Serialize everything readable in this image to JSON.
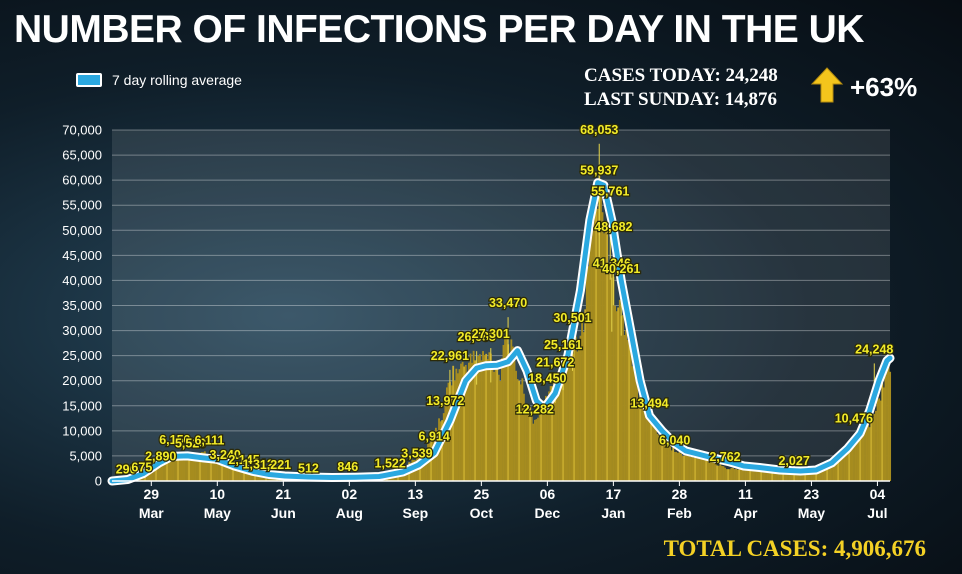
{
  "chart_data": {
    "type": "bar",
    "title": "NUMBER OF INFECTIONS PER DAY IN THE UK",
    "legend": {
      "label": "7 day rolling average",
      "placement": "top-left"
    },
    "ylim": [
      0,
      70000
    ],
    "yticks": [
      0,
      5000,
      10000,
      15000,
      20000,
      25000,
      30000,
      35000,
      40000,
      45000,
      50000,
      55000,
      60000,
      65000,
      70000
    ],
    "ytick_labels": [
      "0",
      "5,000",
      "10,000",
      "15,000",
      "20,000",
      "25,000",
      "30,000",
      "35,000",
      "40,000",
      "45,000",
      "50,000",
      "55,000",
      "60,000",
      "65,000",
      "70,000"
    ],
    "x_range_days": [
      0,
      495
    ],
    "xticks": [
      {
        "day": 25,
        "label": "29",
        "month": "Mar"
      },
      {
        "day": 67,
        "label": "10",
        "month": "May"
      },
      {
        "day": 109,
        "label": "21",
        "month": "Jun"
      },
      {
        "day": 151,
        "label": "02",
        "month": "Aug"
      },
      {
        "day": 193,
        "label": "13",
        "month": "Sep"
      },
      {
        "day": 235,
        "label": "25",
        "month": "Oct"
      },
      {
        "day": 277,
        "label": "06",
        "month": "Dec"
      },
      {
        "day": 319,
        "label": "17",
        "month": "Jan"
      },
      {
        "day": 361,
        "label": "28",
        "month": "Feb"
      },
      {
        "day": 403,
        "label": "11",
        "month": "Apr"
      },
      {
        "day": 445,
        "label": "23",
        "month": "May"
      },
      {
        "day": 487,
        "label": "04",
        "month": "Jul"
      }
    ],
    "series": [
      {
        "name": "7 day rolling average",
        "color": "#2aa8e0",
        "points": [
          [
            0,
            0
          ],
          [
            10,
            300
          ],
          [
            20,
            1500
          ],
          [
            30,
            3600
          ],
          [
            38,
            4900
          ],
          [
            48,
            5000
          ],
          [
            58,
            4600
          ],
          [
            67,
            4300
          ],
          [
            78,
            3000
          ],
          [
            90,
            1900
          ],
          [
            100,
            1300
          ],
          [
            110,
            1000
          ],
          [
            125,
            800
          ],
          [
            140,
            700
          ],
          [
            155,
            750
          ],
          [
            170,
            900
          ],
          [
            185,
            1800
          ],
          [
            195,
            3200
          ],
          [
            205,
            5600
          ],
          [
            215,
            12000
          ],
          [
            225,
            20000
          ],
          [
            232,
            22500
          ],
          [
            238,
            23000
          ],
          [
            245,
            23100
          ],
          [
            252,
            23800
          ],
          [
            258,
            26000
          ],
          [
            264,
            22000
          ],
          [
            270,
            16000
          ],
          [
            275,
            14500
          ],
          [
            282,
            17500
          ],
          [
            290,
            25000
          ],
          [
            298,
            38000
          ],
          [
            304,
            52000
          ],
          [
            309,
            59500
          ],
          [
            313,
            59000
          ],
          [
            318,
            52000
          ],
          [
            324,
            40000
          ],
          [
            330,
            30000
          ],
          [
            336,
            20000
          ],
          [
            342,
            13000
          ],
          [
            350,
            10000
          ],
          [
            358,
            7500
          ],
          [
            365,
            6000
          ],
          [
            375,
            5200
          ],
          [
            385,
            4400
          ],
          [
            393,
            3800
          ],
          [
            402,
            3000
          ],
          [
            412,
            2700
          ],
          [
            425,
            2200
          ],
          [
            438,
            2000
          ],
          [
            448,
            2200
          ],
          [
            458,
            3600
          ],
          [
            468,
            6500
          ],
          [
            476,
            9500
          ],
          [
            482,
            14000
          ],
          [
            488,
            20000
          ],
          [
            493,
            24000
          ],
          [
            495,
            24500
          ]
        ]
      }
    ],
    "bars_peaks": [
      [
        0,
        290
      ],
      [
        15,
        675
      ],
      [
        28,
        2890
      ],
      [
        40,
        6150
      ],
      [
        49,
        5520
      ],
      [
        59,
        6111
      ],
      [
        72,
        3240
      ],
      [
        82,
        2145
      ],
      [
        92,
        1312
      ],
      [
        102,
        1221
      ],
      [
        118,
        512
      ],
      [
        148,
        846
      ],
      [
        170,
        1522
      ],
      [
        188,
        3539
      ],
      [
        200,
        6914
      ],
      [
        210,
        13972
      ],
      [
        215,
        22961
      ],
      [
        230,
        26688
      ],
      [
        240,
        27301
      ],
      [
        247,
        24000
      ],
      [
        250,
        33470
      ],
      [
        255,
        27000
      ],
      [
        263,
        18450
      ],
      [
        268,
        12282
      ],
      [
        276,
        18450
      ],
      [
        283,
        21672
      ],
      [
        287,
        25161
      ],
      [
        295,
        30501
      ],
      [
        300,
        35000
      ],
      [
        305,
        55761
      ],
      [
        307,
        59937
      ],
      [
        310,
        68053
      ],
      [
        313,
        55761
      ],
      [
        317,
        48682
      ],
      [
        319,
        41346
      ],
      [
        322,
        40261
      ],
      [
        328,
        30000
      ],
      [
        335,
        20000
      ],
      [
        342,
        13494
      ],
      [
        353,
        8000
      ],
      [
        361,
        6040
      ],
      [
        372,
        5500
      ],
      [
        391,
        2762
      ],
      [
        410,
        2500
      ],
      [
        433,
        2027
      ],
      [
        460,
        4000
      ],
      [
        474,
        10476
      ],
      [
        482,
        13000
      ],
      [
        488,
        18000
      ],
      [
        493,
        24248
      ]
    ],
    "data_labels": [
      {
        "day": 9,
        "value": 290,
        "text": "290"
      },
      {
        "day": 19,
        "value": 675,
        "text": "675"
      },
      {
        "day": 31,
        "value": 2890,
        "text": "2,890"
      },
      {
        "day": 40,
        "value": 6150,
        "text": "6,150"
      },
      {
        "day": 50,
        "value": 5520,
        "text": "5,520"
      },
      {
        "day": 62,
        "value": 6111,
        "text": "6,111"
      },
      {
        "day": 72,
        "value": 3240,
        "text": "3,240"
      },
      {
        "day": 84,
        "value": 2145,
        "text": "2,145"
      },
      {
        "day": 93,
        "value": 1312,
        "text": "1,312"
      },
      {
        "day": 104,
        "value": 1221,
        "text": "1,221"
      },
      {
        "day": 125,
        "value": 512,
        "text": "512"
      },
      {
        "day": 150,
        "value": 846,
        "text": "846"
      },
      {
        "day": 177,
        "value": 1522,
        "text": "1,522"
      },
      {
        "day": 194,
        "value": 3539,
        "text": "3,539"
      },
      {
        "day": 205,
        "value": 6914,
        "text": "6,914"
      },
      {
        "day": 212,
        "value": 13972,
        "text": "13,972"
      },
      {
        "day": 215,
        "value": 22961,
        "text": "22,961"
      },
      {
        "day": 232,
        "value": 26688,
        "text": "26,688"
      },
      {
        "day": 241,
        "value": 27301,
        "text": "27,301"
      },
      {
        "day": 252,
        "value": 33470,
        "text": "33,470"
      },
      {
        "day": 269,
        "value": 12282,
        "text": "12,282"
      },
      {
        "day": 277,
        "value": 18450,
        "text": "18,450"
      },
      {
        "day": 282,
        "value": 21672,
        "text": "21,672"
      },
      {
        "day": 287,
        "value": 25161,
        "text": "25,161"
      },
      {
        "day": 293,
        "value": 30501,
        "text": "30,501"
      },
      {
        "day": 310,
        "value": 68053,
        "text": "68,053"
      },
      {
        "day": 310,
        "value": 59937,
        "text": "59,937"
      },
      {
        "day": 317,
        "value": 55761,
        "text": "55,761"
      },
      {
        "day": 319,
        "value": 48682,
        "text": "48,682"
      },
      {
        "day": 318,
        "value": 41346,
        "text": "41,346"
      },
      {
        "day": 324,
        "value": 40261,
        "text": "40,261"
      },
      {
        "day": 342,
        "value": 13494,
        "text": "13,494"
      },
      {
        "day": 358,
        "value": 6040,
        "text": "6,040"
      },
      {
        "day": 390,
        "value": 2762,
        "text": "2,762"
      },
      {
        "day": 434,
        "value": 2027,
        "text": "2,027"
      },
      {
        "day": 472,
        "value": 10476,
        "text": "10,476"
      },
      {
        "day": 485,
        "value": 24248,
        "text": "24,248"
      }
    ],
    "colors": {
      "bars": "#a68c1f",
      "bars_light": "#c9ad2f",
      "line": "#2aa8e0",
      "line_outline": "#ffffff",
      "label": "#f3ec28"
    }
  },
  "header": {
    "title": "NUMBER OF INFECTIONS PER DAY IN THE UK",
    "legend_label": "7 day rolling average",
    "cases_today": "CASES TODAY: 24,248",
    "last_sunday": "LAST SUNDAY: 14,876",
    "change_pct": "+63%",
    "arrow_icon": "up-arrow-icon",
    "arrow_color": "#f4c51c"
  },
  "footer": {
    "total_cases": "TOTAL CASES: 4,906,676"
  }
}
